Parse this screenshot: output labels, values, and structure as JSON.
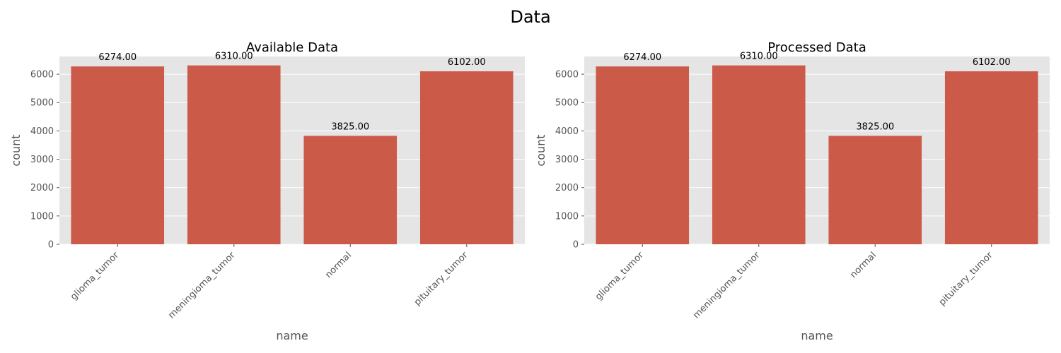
{
  "figure": {
    "title": "Data"
  },
  "chart_data": [
    {
      "type": "bar",
      "title": "Available Data",
      "xlabel": "name",
      "ylabel": "count",
      "categories": [
        "glioma_tumor",
        "meningioma_tumor",
        "normal",
        "pituitary_tumor"
      ],
      "values": [
        6274,
        6310,
        3825,
        6102
      ],
      "data_labels": [
        "6274.00",
        "6310.00",
        "3825.00",
        "6102.00"
      ],
      "yticks": [
        0,
        1000,
        2000,
        3000,
        4000,
        5000,
        6000
      ],
      "ylim": [
        0,
        6625
      ],
      "grid": true,
      "legend": "none",
      "bar_color": "#cc5a49",
      "background_color": "#e5e5e5"
    },
    {
      "type": "bar",
      "title": "Processed Data",
      "xlabel": "name",
      "ylabel": "count",
      "categories": [
        "glioma_tumor",
        "meningioma_tumor",
        "normal",
        "pituitary_tumor"
      ],
      "values": [
        6274,
        6310,
        3825,
        6102
      ],
      "data_labels": [
        "6274.00",
        "6310.00",
        "3825.00",
        "6102.00"
      ],
      "yticks": [
        0,
        1000,
        2000,
        3000,
        4000,
        5000,
        6000
      ],
      "ylim": [
        0,
        6625
      ],
      "grid": true,
      "legend": "none",
      "bar_color": "#cc5a49",
      "background_color": "#e5e5e5"
    }
  ]
}
